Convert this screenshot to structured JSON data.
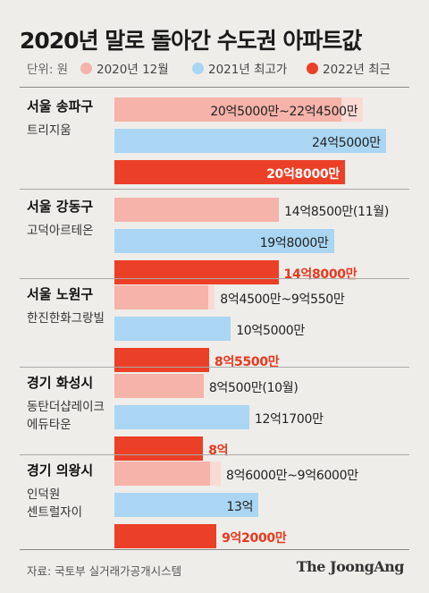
{
  "title": "2020년 말로 돌아간 수도권 아파트값",
  "legend": {
    "unit": "단위: 원",
    "items": [
      {
        "label": "2020년 12월",
        "color": "#f5b3a9"
      },
      {
        "label": "2021년 최고가",
        "color": "#aad6f3"
      },
      {
        "label": "2022년 최근",
        "color": "#ec3f27"
      }
    ]
  },
  "source": "자료: 국토부 실거래가공개시스템",
  "brand": "The JoongAng",
  "chart_data": {
    "type": "bar",
    "unit": "억원",
    "series_names": [
      "2020년 12월",
      "2021년 최고가",
      "2022년 최근"
    ],
    "groups": [
      {
        "region": "서울 송파구",
        "apartment": "트리지움",
        "v2020": {
          "label": "20억5000만~22억4500만",
          "low": 20.5,
          "high": 22.45
        },
        "v2021": {
          "label": "24억5000만",
          "value": 24.5
        },
        "v2022": {
          "label": "20억8000만",
          "value": 20.8
        }
      },
      {
        "region": "서울 강동구",
        "apartment": "고덕아르테온",
        "v2020": {
          "label": "14억8500만(11월)",
          "low": 14.85,
          "high": 14.85
        },
        "v2021": {
          "label": "19억8000만",
          "value": 19.8
        },
        "v2022": {
          "label": "14억8000만",
          "value": 14.8
        }
      },
      {
        "region": "서울 노원구",
        "apartment": "한진한화그랑빌",
        "v2020": {
          "label": "8억4500만~9억550만",
          "low": 8.45,
          "high": 9.055
        },
        "v2021": {
          "label": "10억5000만",
          "value": 10.5
        },
        "v2022": {
          "label": "8억5500만",
          "value": 8.55
        }
      },
      {
        "region": "경기 화성시",
        "apartment": "동탄더샵레이크\n에듀타운",
        "v2020": {
          "label": "8억500만(10월)",
          "low": 8.05,
          "high": 8.05
        },
        "v2021": {
          "label": "12억1700만",
          "value": 12.17
        },
        "v2022": {
          "label": "8억",
          "value": 8.0
        }
      },
      {
        "region": "경기 의왕시",
        "apartment": "인덕원\n센트럴자이",
        "v2020": {
          "label": "8억6000만~9억6000만",
          "low": 8.6,
          "high": 9.6
        },
        "v2021": {
          "label": "13억",
          "value": 13.0
        },
        "v2022": {
          "label": "9억2000만",
          "value": 9.2
        }
      }
    ]
  }
}
